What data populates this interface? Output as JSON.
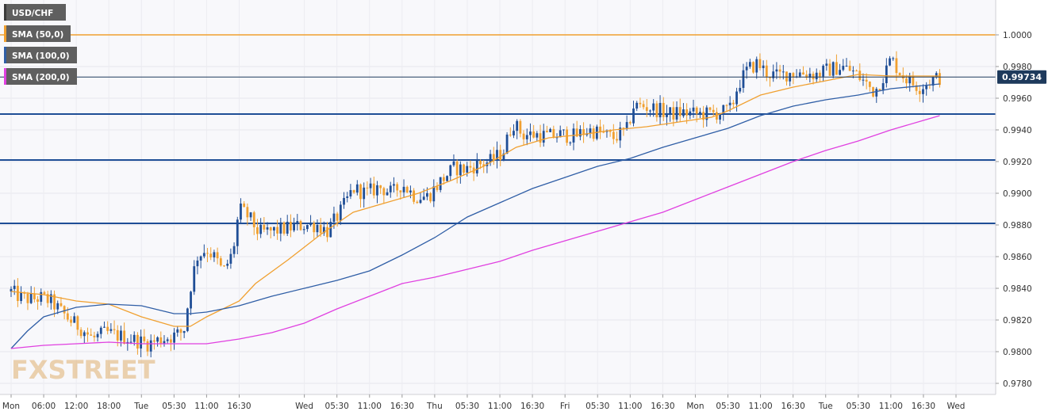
{
  "chart_data": {
    "type": "candlestick",
    "symbol": "USD/CHF",
    "last_price_label": "0.99734",
    "last_price": 0.99734,
    "y_ticks": [
      "1.0000",
      "0.9980",
      "0.9960",
      "0.9940",
      "0.9920",
      "0.9900",
      "0.9880",
      "0.9860",
      "0.9840",
      "0.9820",
      "0.9800",
      "0.9780"
    ],
    "ylim": [
      0.9773,
      1.0022
    ],
    "x_ticks": [
      "Mon",
      "06:00",
      "12:00",
      "18:00",
      "Tue",
      "05:30",
      "11:00",
      "16:30",
      "Wed",
      "05:30",
      "11:00",
      "16:30",
      "Thu",
      "05:30",
      "11:00",
      "16:30",
      "Fri",
      "05:30",
      "11:00",
      "16:30",
      "Mon",
      "05:30",
      "11:00",
      "16:30",
      "Tue",
      "05:30",
      "11:00",
      "16:30",
      "Wed"
    ],
    "x_tick_pos": [
      0.5,
      1.5,
      2.5,
      3.5,
      4.5,
      5.5,
      6.5,
      7.5,
      9.5,
      10.5,
      11.5,
      12.5,
      13.5,
      14.5,
      15.5,
      16.5,
      17.5,
      18.5,
      19.5,
      20.5,
      21.5,
      22.5,
      23.5,
      24.5,
      25.5,
      26.5,
      27.5,
      28.5,
      29.5
    ],
    "x_range": [
      0.5,
      29.5
    ],
    "legend": [
      {
        "label": "USD/CHF",
        "color": "#3a3a3a"
      },
      {
        "label": "SMA (50,0)",
        "color": "#f0a030"
      },
      {
        "label": "SMA (100,0)",
        "color": "#2f5ea6"
      },
      {
        "label": "SMA (200,0)",
        "color": "#e040e0"
      }
    ],
    "horizontal_levels": [
      {
        "value": 1.0,
        "color": "#f0a030"
      },
      {
        "value": 0.995,
        "color": "#1f4e96"
      },
      {
        "value": 0.9921,
        "color": "#1f4e96"
      },
      {
        "value": 0.9881,
        "color": "#1f4e96"
      }
    ],
    "price_path": [
      [
        0.5,
        0.9838
      ],
      [
        0.8,
        0.9834
      ],
      [
        1.1,
        0.9833
      ],
      [
        1.4,
        0.9834
      ],
      [
        1.7,
        0.9832
      ],
      [
        2.0,
        0.9826
      ],
      [
        2.3,
        0.982
      ],
      [
        2.7,
        0.9814
      ],
      [
        3.0,
        0.9808
      ],
      [
        3.4,
        0.9812
      ],
      [
        3.8,
        0.981
      ],
      [
        4.2,
        0.9808
      ],
      [
        4.7,
        0.9805
      ],
      [
        5.1,
        0.9808
      ],
      [
        5.5,
        0.981
      ],
      [
        5.8,
        0.9813
      ],
      [
        6.0,
        0.984
      ],
      [
        6.2,
        0.986
      ],
      [
        6.5,
        0.9865
      ],
      [
        6.8,
        0.9858
      ],
      [
        7.0,
        0.985
      ],
      [
        7.3,
        0.9862
      ],
      [
        7.5,
        0.989
      ],
      [
        7.8,
        0.9885
      ],
      [
        8.1,
        0.9875
      ],
      [
        8.5,
        0.9876
      ],
      [
        9.0,
        0.9878
      ],
      [
        9.5,
        0.988
      ],
      [
        9.9,
        0.988
      ],
      [
        10.2,
        0.9876
      ],
      [
        10.6,
        0.9888
      ],
      [
        11.0,
        0.9903
      ],
      [
        11.4,
        0.99
      ],
      [
        11.8,
        0.9904
      ],
      [
        12.2,
        0.99
      ],
      [
        12.5,
        0.9906
      ],
      [
        12.9,
        0.9898
      ],
      [
        13.3,
        0.9898
      ],
      [
        13.7,
        0.9908
      ],
      [
        14.1,
        0.9916
      ],
      [
        14.4,
        0.9915
      ],
      [
        14.8,
        0.9918
      ],
      [
        15.2,
        0.992
      ],
      [
        15.6,
        0.9926
      ],
      [
        15.9,
        0.9945
      ],
      [
        16.2,
        0.9937
      ],
      [
        16.6,
        0.9937
      ],
      [
        17.0,
        0.9936
      ],
      [
        17.4,
        0.9937
      ],
      [
        17.8,
        0.9936
      ],
      [
        18.2,
        0.994
      ],
      [
        18.6,
        0.9938
      ],
      [
        19.0,
        0.9935
      ],
      [
        19.4,
        0.994
      ],
      [
        19.6,
        0.9955
      ],
      [
        19.9,
        0.9955
      ],
      [
        20.3,
        0.9953
      ],
      [
        20.7,
        0.995
      ],
      [
        21.1,
        0.9951
      ],
      [
        21.5,
        0.995
      ],
      [
        21.9,
        0.995
      ],
      [
        22.3,
        0.9951
      ],
      [
        22.6,
        0.9953
      ],
      [
        22.8,
        0.9968
      ],
      [
        23.1,
        0.9978
      ],
      [
        23.4,
        0.9982
      ],
      [
        23.7,
        0.9976
      ],
      [
        24.0,
        0.9974
      ],
      [
        24.4,
        0.9976
      ],
      [
        24.8,
        0.9976
      ],
      [
        25.2,
        0.9975
      ],
      [
        25.6,
        0.9978
      ],
      [
        26.0,
        0.998
      ],
      [
        26.4,
        0.9976
      ],
      [
        26.7,
        0.997
      ],
      [
        27.0,
        0.9964
      ],
      [
        27.3,
        0.9975
      ],
      [
        27.5,
        0.9985
      ],
      [
        27.8,
        0.9976
      ],
      [
        28.1,
        0.997
      ],
      [
        28.4,
        0.9967
      ],
      [
        28.7,
        0.9971
      ],
      [
        29.0,
        0.9973
      ]
    ],
    "series": [
      {
        "name": "SMA (50,0)",
        "color": "#f0a030",
        "points": [
          [
            0.5,
            0.9838
          ],
          [
            1.5,
            0.9836
          ],
          [
            2.5,
            0.9832
          ],
          [
            3.5,
            0.983
          ],
          [
            4.5,
            0.9822
          ],
          [
            5.5,
            0.9816
          ],
          [
            6.0,
            0.9816
          ],
          [
            6.5,
            0.9822
          ],
          [
            7.5,
            0.9832
          ],
          [
            8.0,
            0.9843
          ],
          [
            9.0,
            0.9858
          ],
          [
            10.0,
            0.9874
          ],
          [
            11.0,
            0.9888
          ],
          [
            12.0,
            0.9894
          ],
          [
            13.0,
            0.99
          ],
          [
            14.0,
            0.9908
          ],
          [
            15.0,
            0.9917
          ],
          [
            16.0,
            0.9929
          ],
          [
            17.0,
            0.9935
          ],
          [
            18.0,
            0.9937
          ],
          [
            19.0,
            0.994
          ],
          [
            20.0,
            0.9942
          ],
          [
            21.0,
            0.9945
          ],
          [
            22.0,
            0.9948
          ],
          [
            22.5,
            0.9952
          ],
          [
            23.5,
            0.9962
          ],
          [
            24.5,
            0.9967
          ],
          [
            25.5,
            0.9971
          ],
          [
            26.5,
            0.9975
          ],
          [
            27.5,
            0.9974
          ],
          [
            28.5,
            0.9974
          ],
          [
            29.0,
            0.9974
          ]
        ]
      },
      {
        "name": "SMA (100,0)",
        "color": "#2f5ea6",
        "points": [
          [
            0.5,
            0.9802
          ],
          [
            1.0,
            0.9813
          ],
          [
            1.5,
            0.9822
          ],
          [
            2.5,
            0.9828
          ],
          [
            3.5,
            0.983
          ],
          [
            4.5,
            0.9829
          ],
          [
            5.5,
            0.9824
          ],
          [
            6.0,
            0.9824
          ],
          [
            6.5,
            0.9825
          ],
          [
            7.5,
            0.9829
          ],
          [
            8.5,
            0.9835
          ],
          [
            9.5,
            0.984
          ],
          [
            10.5,
            0.9845
          ],
          [
            11.5,
            0.9851
          ],
          [
            12.5,
            0.9861
          ],
          [
            13.5,
            0.9872
          ],
          [
            14.5,
            0.9885
          ],
          [
            15.5,
            0.9894
          ],
          [
            16.5,
            0.9903
          ],
          [
            17.5,
            0.991
          ],
          [
            18.5,
            0.9917
          ],
          [
            19.5,
            0.9922
          ],
          [
            20.5,
            0.9929
          ],
          [
            21.5,
            0.9935
          ],
          [
            22.5,
            0.9941
          ],
          [
            23.5,
            0.9949
          ],
          [
            24.5,
            0.9955
          ],
          [
            25.5,
            0.9959
          ],
          [
            26.5,
            0.9962
          ],
          [
            27.5,
            0.9966
          ],
          [
            28.5,
            0.9968
          ],
          [
            29.0,
            0.9969
          ]
        ]
      },
      {
        "name": "SMA (200,0)",
        "color": "#e040e0",
        "points": [
          [
            0.5,
            0.9802
          ],
          [
            1.5,
            0.9804
          ],
          [
            2.5,
            0.9805
          ],
          [
            3.5,
            0.9806
          ],
          [
            4.5,
            0.9805
          ],
          [
            5.5,
            0.9805
          ],
          [
            6.5,
            0.9805
          ],
          [
            7.5,
            0.9808
          ],
          [
            8.5,
            0.9812
          ],
          [
            9.5,
            0.9818
          ],
          [
            10.5,
            0.9827
          ],
          [
            11.5,
            0.9835
          ],
          [
            12.5,
            0.9843
          ],
          [
            13.5,
            0.9847
          ],
          [
            14.5,
            0.9852
          ],
          [
            15.5,
            0.9857
          ],
          [
            16.5,
            0.9864
          ],
          [
            17.5,
            0.987
          ],
          [
            18.5,
            0.9876
          ],
          [
            19.5,
            0.9882
          ],
          [
            20.5,
            0.9888
          ],
          [
            21.5,
            0.9896
          ],
          [
            22.5,
            0.9904
          ],
          [
            23.5,
            0.9912
          ],
          [
            24.5,
            0.992
          ],
          [
            25.5,
            0.9927
          ],
          [
            26.5,
            0.9933
          ],
          [
            27.5,
            0.994
          ],
          [
            28.5,
            0.9946
          ],
          [
            29.0,
            0.9949
          ]
        ]
      }
    ]
  },
  "watermark": "FXSTREET"
}
